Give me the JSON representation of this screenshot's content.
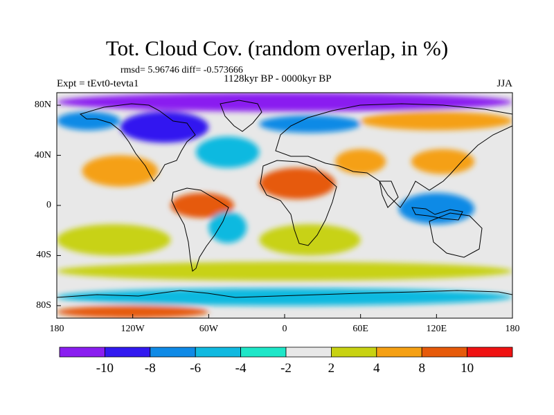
{
  "header": {
    "title": "Tot. Cloud Cov. (random overlap, in %)",
    "stats": "rmsd= 5.96746  diff= -0.573666",
    "experiment": "Expt = tEvt0-tevta1",
    "period": "1128kyr BP - 0000kyr BP",
    "season": "JJA"
  },
  "map": {
    "projection": "cylindrical-equidistant",
    "lon_range": [
      -180,
      180
    ],
    "lat_range": [
      -90,
      90
    ],
    "lat_ticks": [
      {
        "label": "80N"
      },
      {
        "label": "40N"
      },
      {
        "label": "0"
      },
      {
        "label": "40S"
      },
      {
        "label": "80S"
      }
    ],
    "lon_ticks": [
      {
        "label": "180"
      },
      {
        "label": "120W"
      },
      {
        "label": "60W"
      },
      {
        "label": "0"
      },
      {
        "label": "60E"
      },
      {
        "label": "120E"
      },
      {
        "label": "180"
      }
    ],
    "coastlines": "shown",
    "background_color": "#e8e8e8"
  },
  "colorbar": {
    "levels": [
      -10,
      -8,
      -6,
      -4,
      -2,
      2,
      4,
      8,
      10
    ],
    "labels": [
      "-10",
      "-8",
      "-6",
      "-4",
      "-2",
      "2",
      "4",
      "8",
      "10"
    ],
    "colors": [
      "#8a1ef0",
      "#3219f0",
      "#0f8ae6",
      "#10b9e0",
      "#1ee6c8",
      "#e8e8e8",
      "#c8d212",
      "#f5a014",
      "#e65a0a",
      "#ef1212"
    ]
  },
  "chart_data": {
    "type": "heatmap",
    "title": "Tot. Cloud Cov. (random overlap, in %)",
    "subtitle": "1128kyr BP - 0000kyr BP",
    "xlabel": "",
    "ylabel": "",
    "x_range": [
      -180,
      180
    ],
    "y_range": [
      -90,
      90
    ],
    "rmsd": 5.96746,
    "diff": -0.573666,
    "regions": [
      {
        "lon": [
          -180,
          180
        ],
        "lat": [
          75,
          90
        ],
        "value": -11
      },
      {
        "lon": [
          -130,
          -60
        ],
        "lat": [
          50,
          75
        ],
        "value": -10
      },
      {
        "lon": [
          -180,
          -130
        ],
        "lat": [
          60,
          75
        ],
        "value": -7
      },
      {
        "lon": [
          -20,
          60
        ],
        "lat": [
          58,
          72
        ],
        "value": -8
      },
      {
        "lon": [
          60,
          180
        ],
        "lat": [
          60,
          75
        ],
        "value": 5
      },
      {
        "lon": [
          -160,
          -100
        ],
        "lat": [
          15,
          40
        ],
        "value": 5
      },
      {
        "lon": [
          -70,
          -20
        ],
        "lat": [
          30,
          55
        ],
        "value": -5
      },
      {
        "lon": [
          -20,
          40
        ],
        "lat": [
          5,
          30
        ],
        "value": 9
      },
      {
        "lon": [
          40,
          80
        ],
        "lat": [
          25,
          45
        ],
        "value": 5
      },
      {
        "lon": [
          100,
          150
        ],
        "lat": [
          25,
          45
        ],
        "value": 7
      },
      {
        "lon": [
          -90,
          -40
        ],
        "lat": [
          -10,
          10
        ],
        "value": 8
      },
      {
        "lon": [
          -60,
          -30
        ],
        "lat": [
          -30,
          -5
        ],
        "value": -5
      },
      {
        "lon": [
          90,
          150
        ],
        "lat": [
          -15,
          10
        ],
        "value": -7
      },
      {
        "lon": [
          -180,
          -90
        ],
        "lat": [
          -40,
          -15
        ],
        "value": 3
      },
      {
        "lon": [
          -20,
          60
        ],
        "lat": [
          -40,
          -15
        ],
        "value": 3
      },
      {
        "lon": [
          -180,
          180
        ],
        "lat": [
          -60,
          -45
        ],
        "value": 3
      },
      {
        "lon": [
          -180,
          180
        ],
        "lat": [
          -80,
          -66
        ],
        "value": -5
      },
      {
        "lon": [
          -180,
          -60
        ],
        "lat": [
          -90,
          -80
        ],
        "value": 9
      }
    ]
  }
}
